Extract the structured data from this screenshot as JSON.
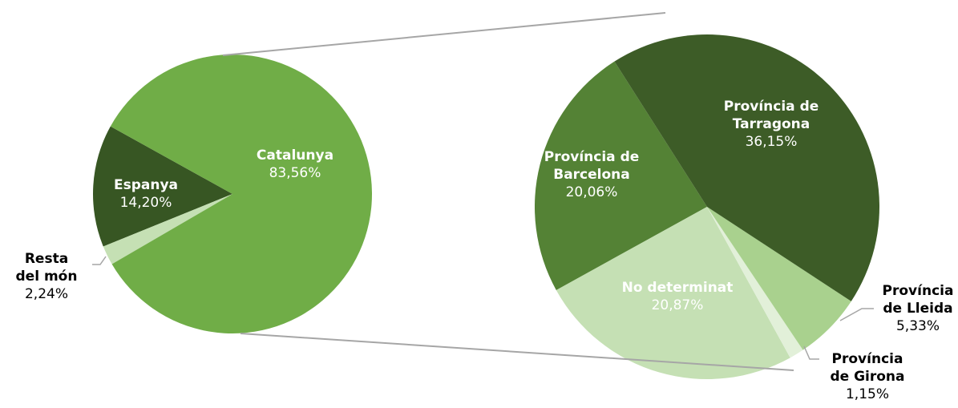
{
  "chart_data": [
    {
      "type": "pie",
      "categories": [
        "Catalunya",
        "Resta del món",
        "Espanya"
      ],
      "values": [
        83.56,
        2.24,
        14.2
      ],
      "value_labels": [
        "83,56%",
        "2,24%",
        "14,20%"
      ],
      "colors": [
        "#70ad47",
        "#c5e0b4",
        "#375623"
      ]
    },
    {
      "type": "pie",
      "categories": [
        "Província de Tarragona",
        "Província de Lleida",
        "Província de Girona",
        "No determinat",
        "Província de Barcelona"
      ],
      "values": [
        36.15,
        5.33,
        1.15,
        20.87,
        20.06
      ],
      "value_labels": [
        "36,15%",
        "5,33%",
        "1,15%",
        "20,87%",
        "20,06%"
      ],
      "colors": [
        "#3d5c27",
        "#a9d18e",
        "#e2f0d9",
        "#c5e0b4",
        "#548235"
      ]
    }
  ]
}
